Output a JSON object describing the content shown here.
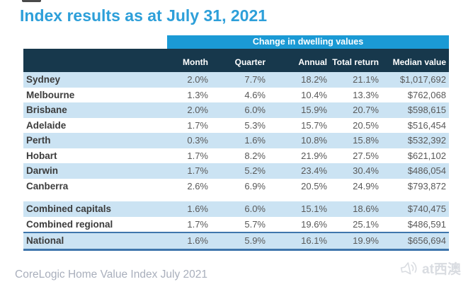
{
  "page": {
    "title": "Index results as at July 31, 2021",
    "footer": "CoreLogic Home Value Index July 2021",
    "watermark_text": "at西澳"
  },
  "colors": {
    "title_blue": "#2D9FD9",
    "band_blue": "#1B9AD5",
    "header_navy": "#17384C",
    "row_light_blue": "#CBE3F3",
    "national_border_blue": "#3F76AC",
    "region_text": "#3C3C3C",
    "value_text": "#595959",
    "footer_gray": "#A9AFBC",
    "watermark_gray": "#D9DCE1"
  },
  "chart_data": {
    "type": "table",
    "title": "Index results as at July 31, 2021",
    "group_header": "Change in dwelling values",
    "columns": [
      "",
      "Month",
      "Quarter",
      "Annual",
      "Total return",
      "Median value"
    ],
    "rows": [
      {
        "section": "city",
        "region": "Sydney",
        "month": "2.0%",
        "quarter": "7.7%",
        "annual": "18.2%",
        "total_return": "21.1%",
        "median_value": "$1,017,692"
      },
      {
        "section": "city",
        "region": "Melbourne",
        "month": "1.3%",
        "quarter": "4.6%",
        "annual": "10.4%",
        "total_return": "13.3%",
        "median_value": "$762,068"
      },
      {
        "section": "city",
        "region": "Brisbane",
        "month": "2.0%",
        "quarter": "6.0%",
        "annual": "15.9%",
        "total_return": "20.7%",
        "median_value": "$598,615"
      },
      {
        "section": "city",
        "region": "Adelaide",
        "month": "1.7%",
        "quarter": "5.3%",
        "annual": "15.7%",
        "total_return": "20.5%",
        "median_value": "$516,454"
      },
      {
        "section": "city",
        "region": "Perth",
        "month": "0.3%",
        "quarter": "1.6%",
        "annual": "10.8%",
        "total_return": "15.8%",
        "median_value": "$532,392"
      },
      {
        "section": "city",
        "region": "Hobart",
        "month": "1.7%",
        "quarter": "8.2%",
        "annual": "21.9%",
        "total_return": "27.5%",
        "median_value": "$621,102"
      },
      {
        "section": "city",
        "region": "Darwin",
        "month": "1.7%",
        "quarter": "5.2%",
        "annual": "23.4%",
        "total_return": "30.4%",
        "median_value": "$486,054"
      },
      {
        "section": "city",
        "region": "Canberra",
        "month": "2.6%",
        "quarter": "6.9%",
        "annual": "20.5%",
        "total_return": "24.9%",
        "median_value": "$793,872"
      },
      {
        "section": "combined",
        "spacer_before": true,
        "region": "Combined capitals",
        "month": "1.6%",
        "quarter": "6.0%",
        "annual": "15.1%",
        "total_return": "18.6%",
        "median_value": "$740,475"
      },
      {
        "section": "combined",
        "region": "Combined regional",
        "month": "1.7%",
        "quarter": "5.7%",
        "annual": "19.6%",
        "total_return": "25.1%",
        "median_value": "$486,591"
      },
      {
        "section": "national",
        "region": "National",
        "month": "1.6%",
        "quarter": "5.9%",
        "annual": "16.1%",
        "total_return": "19.9%",
        "median_value": "$656,694"
      }
    ]
  }
}
